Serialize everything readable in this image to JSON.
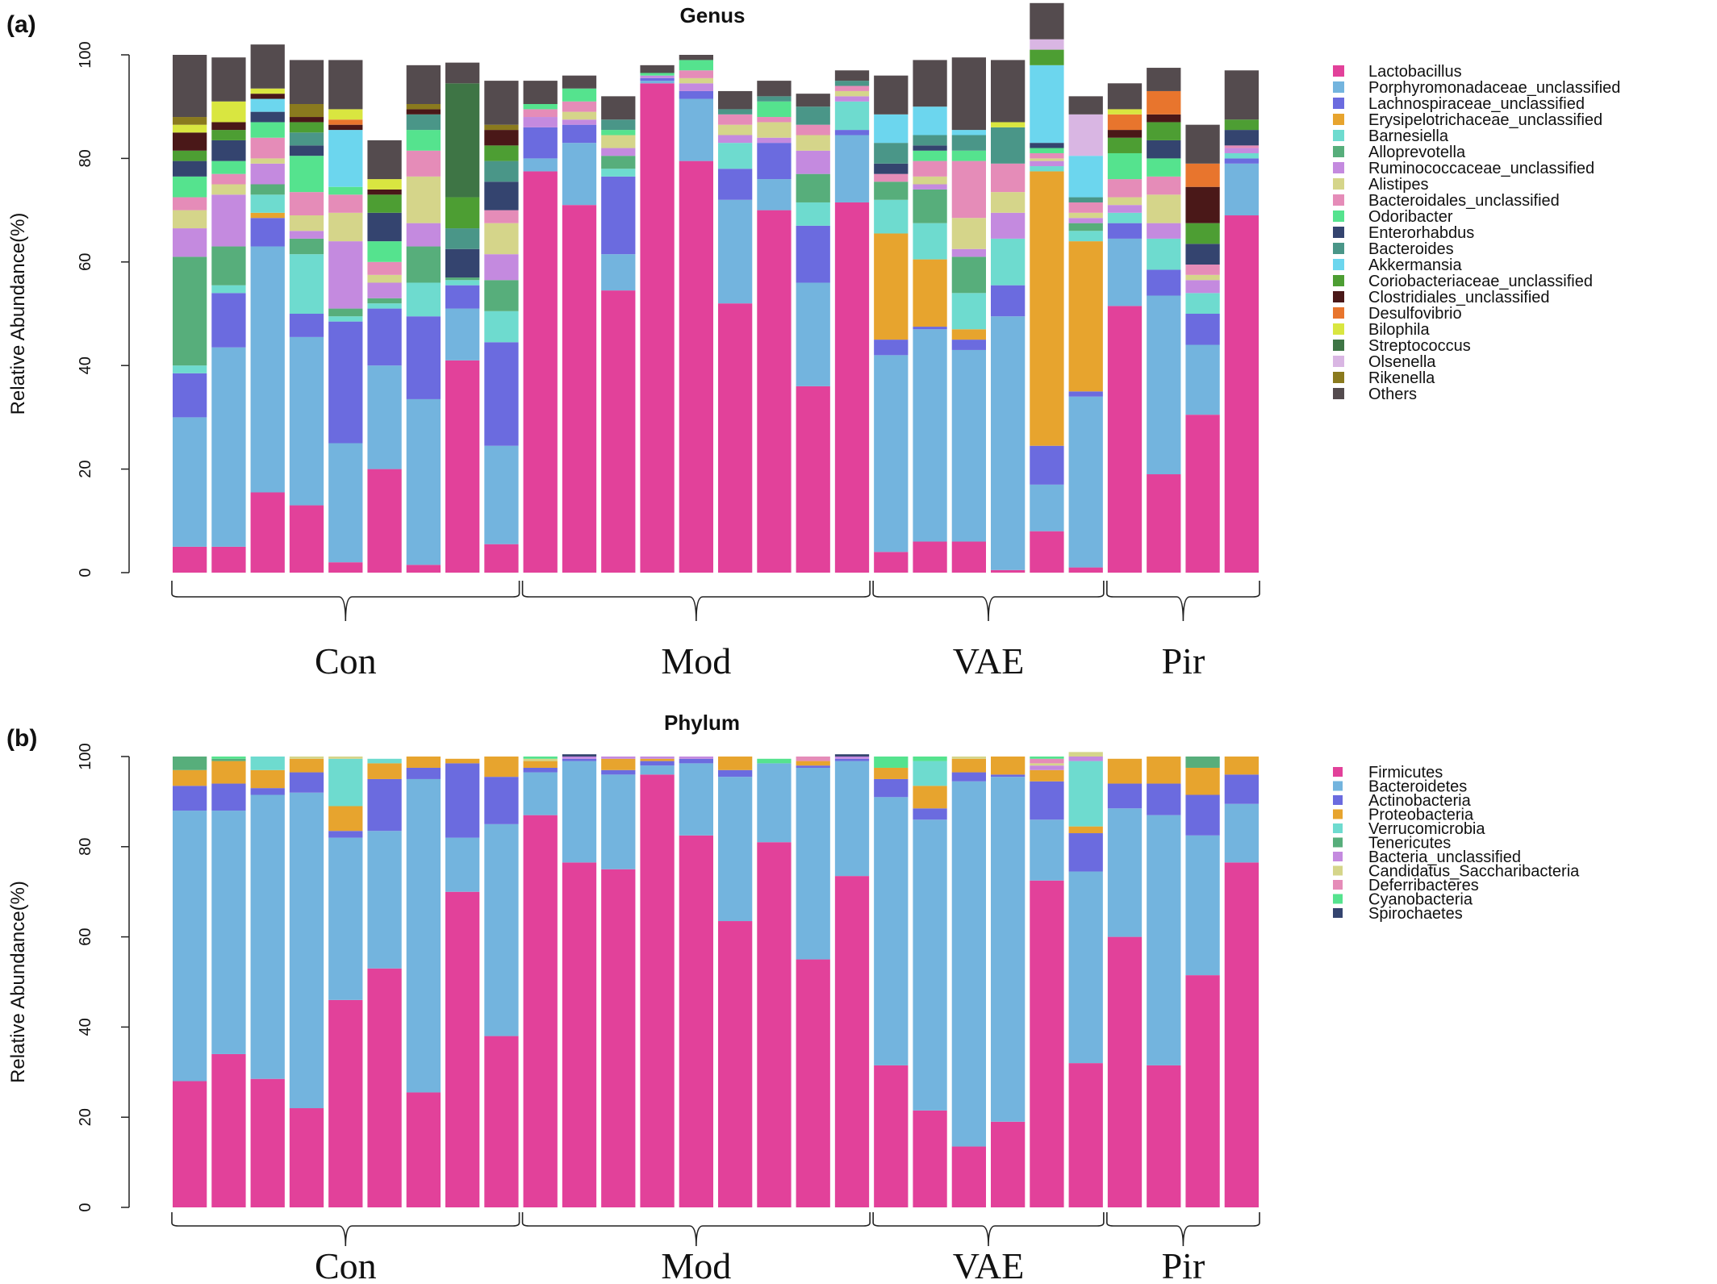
{
  "panels": [
    {
      "label": "(a)"
    },
    {
      "label": "(b)"
    }
  ],
  "chart_data": [
    {
      "type": "bar",
      "stacked": true,
      "title": "Genus",
      "ylabel": "Relative Abundance(%)",
      "ylim": [
        0,
        100
      ],
      "yticks": [
        "0",
        "20",
        "40",
        "60",
        "80",
        "100"
      ],
      "legend_position": "right",
      "groups": [
        {
          "name": "Con",
          "count": 9
        },
        {
          "name": "Mod",
          "count": 9
        },
        {
          "name": "VAE",
          "count": 6
        },
        {
          "name": "Pir",
          "count": 4
        }
      ],
      "series": [
        {
          "name": "Lactobacillus",
          "color": "#E2419A",
          "values": [
            5,
            5,
            15.5,
            13,
            2,
            20,
            1.5,
            41,
            5.5,
            77.5,
            71,
            54.5,
            94.5,
            79.5,
            52,
            70,
            36,
            71.5,
            4,
            6,
            6,
            0.5,
            8,
            1,
            51.5,
            19,
            30.5,
            69
          ]
        },
        {
          "name": "Porphyromonadaceae_unclassified",
          "color": "#73B4DE",
          "values": [
            25,
            38.5,
            47.5,
            32.5,
            23,
            20,
            32,
            10,
            19,
            2.5,
            12,
            7,
            0.5,
            12,
            20,
            6,
            20,
            13,
            38,
            41,
            37,
            49,
            9,
            33,
            13,
            34.5,
            13.5,
            10
          ]
        },
        {
          "name": "Lachnospiraceae_unclassified",
          "color": "#6B6BDF",
          "values": [
            8.5,
            10.5,
            5.5,
            4.5,
            23.5,
            11,
            16,
            4.5,
            20,
            6,
            3.5,
            15,
            0.5,
            1.5,
            6,
            7,
            11,
            1,
            3,
            0.5,
            2,
            6,
            7.5,
            1,
            3,
            5,
            6,
            1
          ]
        },
        {
          "name": "Erysipelotrichaceae_unclassified",
          "color": "#E7A42E",
          "values": [
            0,
            0,
            1,
            0,
            0,
            0,
            0,
            0,
            0,
            0,
            0,
            0,
            0,
            0,
            0,
            0,
            0,
            0,
            20.5,
            13,
            2,
            0,
            53,
            29,
            0,
            0,
            0,
            0
          ]
        },
        {
          "name": "Barnesiella",
          "color": "#6EDBCF",
          "values": [
            1.5,
            1.5,
            3.5,
            11.5,
            1,
            1,
            6.5,
            1,
            6,
            0,
            0,
            1.5,
            0,
            0,
            5,
            0,
            4.5,
            5.5,
            6.5,
            7,
            7,
            9,
            1,
            2,
            2,
            6,
            4,
            1
          ]
        },
        {
          "name": "Alloprevotella",
          "color": "#57AE7B",
          "values": [
            21,
            7.5,
            2,
            3,
            1.5,
            1,
            7,
            0.5,
            6,
            0,
            0,
            2.5,
            0,
            0,
            0,
            0,
            5.5,
            0,
            3.5,
            6.5,
            7,
            0,
            0,
            1.5,
            0,
            0,
            0,
            0
          ]
        },
        {
          "name": "Ruminococcaceae_unclassified",
          "color": "#C48ADF",
          "values": [
            5.5,
            10,
            4,
            1.5,
            13,
            3,
            4.5,
            0,
            5,
            2,
            1,
            1.5,
            0.5,
            1.5,
            1.5,
            1,
            4.5,
            1,
            0,
            1,
            1.5,
            5,
            1,
            1,
            1.5,
            3,
            2.5,
            1
          ]
        },
        {
          "name": "Alistipes",
          "color": "#D5D58A",
          "values": [
            3.5,
            2,
            1,
            3,
            5.5,
            1.5,
            9,
            0,
            6,
            0,
            1.5,
            2.5,
            0,
            1,
            2,
            3,
            3,
            1,
            0,
            1.5,
            6,
            4,
            0.5,
            1,
            1.5,
            5.5,
            1,
            0
          ]
        },
        {
          "name": "Bacteroidales_unclassified",
          "color": "#E58CB8",
          "values": [
            2.5,
            2,
            4,
            4.5,
            3.5,
            2.5,
            5,
            0,
            2.5,
            1.5,
            2,
            0,
            0,
            1.5,
            2,
            1,
            2,
            1,
            1.5,
            3,
            11,
            5.5,
            1,
            2,
            3.5,
            3.5,
            2,
            0.5
          ]
        },
        {
          "name": "Odoribacter",
          "color": "#55E38E",
          "values": [
            4,
            2.5,
            3,
            7,
            1.5,
            4,
            4,
            0,
            0,
            1,
            2.5,
            1,
            0.5,
            2,
            0,
            3,
            0,
            0,
            0,
            2,
            2,
            0,
            1,
            0,
            5,
            3.5,
            0,
            0
          ]
        },
        {
          "name": "Enterorhabdus",
          "color": "#34446F",
          "values": [
            3,
            4,
            2,
            2,
            0,
            5.5,
            0,
            5.5,
            5.5,
            0,
            0,
            0,
            0,
            0,
            0,
            0,
            0,
            0,
            2,
            1,
            0,
            0,
            1,
            0,
            0,
            3.5,
            4,
            3
          ]
        },
        {
          "name": "Bacteroides",
          "color": "#4A9688",
          "values": [
            0,
            0,
            0,
            2.5,
            0,
            0,
            3,
            4,
            4,
            0,
            0,
            2,
            0,
            0,
            1,
            1,
            3.5,
            1,
            4,
            2,
            3,
            7,
            0,
            1,
            0,
            0,
            0,
            0
          ]
        },
        {
          "name": "Akkermansia",
          "color": "#6CD6EE",
          "values": [
            0,
            0,
            2.5,
            0,
            11,
            0,
            0,
            0,
            0,
            0,
            0,
            0,
            0,
            0,
            0,
            0,
            0,
            0,
            5.5,
            5.5,
            1,
            0,
            15,
            8,
            0,
            0,
            0,
            0
          ]
        },
        {
          "name": "Coriobacteriaceae_unclassified",
          "color": "#4D9E33",
          "values": [
            2,
            2,
            0,
            2,
            0,
            3.5,
            0,
            6,
            3,
            0,
            0,
            0,
            0,
            0,
            0,
            0,
            0,
            0,
            0,
            0,
            0,
            0,
            3,
            0,
            3,
            3.5,
            4,
            2
          ]
        },
        {
          "name": "Clostridiales_unclassified",
          "color": "#4A1818",
          "values": [
            3.5,
            1.5,
            1,
            1,
            1,
            1,
            1,
            0,
            3,
            0,
            0,
            0,
            0,
            0,
            0,
            0,
            0,
            0,
            0,
            0,
            0,
            0,
            0,
            0,
            1.5,
            1.5,
            7,
            0
          ]
        },
        {
          "name": "Desulfovibrio",
          "color": "#E8752D",
          "values": [
            0,
            0,
            0,
            0,
            1,
            0,
            0,
            0,
            0,
            0,
            0,
            0,
            0,
            0,
            0,
            0,
            0,
            0,
            0,
            0,
            0,
            0,
            0,
            0,
            3,
            4.5,
            4.5,
            0
          ]
        },
        {
          "name": "Bilophila",
          "color": "#D9E640",
          "values": [
            1.5,
            4,
            1,
            0,
            2,
            2,
            0,
            0,
            0,
            0,
            0,
            0,
            0,
            0,
            0,
            0,
            0,
            0,
            0,
            0,
            0,
            1,
            0,
            0,
            1,
            0,
            0,
            0
          ]
        },
        {
          "name": "Streptococcus",
          "color": "#3E7545",
          "values": [
            0,
            0,
            0,
            0,
            0,
            0,
            0,
            22,
            0,
            0,
            0,
            0,
            0,
            0,
            0,
            0,
            0,
            0,
            0,
            0,
            0,
            0,
            0,
            0,
            0,
            0,
            0,
            0
          ]
        },
        {
          "name": "Olsenella",
          "color": "#D9B6E3",
          "values": [
            0,
            0,
            0,
            0,
            0,
            0,
            0,
            0,
            0,
            0,
            0,
            0,
            0,
            0,
            0,
            0,
            0,
            0,
            0,
            0,
            0,
            0,
            2,
            8,
            0,
            0,
            0,
            0
          ]
        },
        {
          "name": "Rikenella",
          "color": "#8A7A1E",
          "values": [
            1.5,
            0,
            0,
            2.5,
            0,
            0,
            1,
            0,
            1,
            0,
            0,
            0,
            0,
            0,
            0,
            0,
            0,
            0,
            0,
            0,
            0,
            0,
            0,
            0,
            0,
            0,
            0,
            0
          ]
        },
        {
          "name": "Others",
          "color": "#544B4E",
          "values": [
            12,
            8.5,
            8.5,
            8.5,
            9.5,
            7.5,
            7.5,
            4,
            8.5,
            4.5,
            2.5,
            4.5,
            1.5,
            1,
            3.5,
            3,
            2.5,
            2,
            7.5,
            9,
            14,
            12,
            7,
            3.5,
            5,
            4.5,
            7.5,
            9.5
          ]
        }
      ]
    },
    {
      "type": "bar",
      "stacked": true,
      "title": "Phylum",
      "ylabel": "Relative Abundance(%)",
      "ylim": [
        0,
        100
      ],
      "yticks": [
        "0",
        "20",
        "40",
        "60",
        "80",
        "100"
      ],
      "legend_position": "right",
      "groups": [
        {
          "name": "Con",
          "count": 9
        },
        {
          "name": "Mod",
          "count": 9
        },
        {
          "name": "VAE",
          "count": 6
        },
        {
          "name": "Pir",
          "count": 4
        }
      ],
      "series": [
        {
          "name": "Firmicutes",
          "color": "#E2419A",
          "values": [
            28,
            34,
            28.5,
            22,
            46,
            53,
            25.5,
            70,
            38,
            87,
            76.5,
            75,
            96,
            82.5,
            63.5,
            81,
            55,
            73.5,
            31.5,
            21.5,
            13.5,
            19,
            72.5,
            32,
            60,
            31.5,
            51.5,
            76.5
          ]
        },
        {
          "name": "Bacteroidetes",
          "color": "#73B4DE",
          "values": [
            60,
            54,
            63,
            70,
            36,
            30.5,
            69.5,
            12,
            47,
            9.5,
            22.5,
            21,
            2,
            16,
            32,
            17.5,
            42.5,
            25.5,
            59.5,
            64.5,
            81,
            76.5,
            13.5,
            42.5,
            28.5,
            55.5,
            31,
            13
          ]
        },
        {
          "name": "Actinobacteria",
          "color": "#6B6BDF",
          "values": [
            5.5,
            6,
            1.5,
            4.5,
            1.5,
            11.5,
            2.5,
            16.5,
            10.5,
            1,
            0.5,
            1,
            1,
            1,
            1.5,
            0,
            0.5,
            0.5,
            4,
            2.5,
            2,
            0.5,
            8.5,
            8.5,
            5.5,
            7,
            9,
            6.5
          ]
        },
        {
          "name": "Proteobacteria",
          "color": "#E7A42E",
          "values": [
            3.5,
            5,
            4,
            3,
            5.5,
            3.5,
            2.5,
            1,
            4.5,
            1.5,
            0,
            2.5,
            0.5,
            0,
            3,
            0,
            1,
            0,
            2.5,
            5,
            3,
            4,
            2.5,
            1.5,
            5.5,
            6,
            6,
            4
          ]
        },
        {
          "name": "Verrucomicrobia",
          "color": "#6EDBCF",
          "values": [
            0,
            0,
            3,
            0,
            10.5,
            1,
            0,
            0,
            0,
            0,
            0,
            0,
            0,
            0,
            0,
            0,
            0,
            0,
            0,
            5.5,
            0,
            0,
            0,
            14.5,
            0,
            0,
            0,
            0
          ]
        },
        {
          "name": "Tenericutes",
          "color": "#57AE7B",
          "values": [
            3,
            0.5,
            0,
            0,
            0,
            0,
            0,
            0,
            0,
            0,
            0,
            0,
            0,
            0,
            0,
            0,
            0,
            0,
            0,
            0,
            0,
            0,
            0,
            0,
            0,
            0,
            2.5,
            0
          ]
        },
        {
          "name": "Bacteria_unclassified",
          "color": "#C48ADF",
          "values": [
            0,
            0,
            0,
            0,
            0,
            0,
            0,
            0,
            0,
            0,
            0.5,
            0.5,
            0.5,
            0.5,
            0,
            0,
            0,
            0.5,
            0,
            0,
            0,
            0,
            1,
            1,
            0,
            0,
            0,
            0
          ]
        },
        {
          "name": "Candidatus_Saccharibacteria",
          "color": "#D5D58A",
          "values": [
            0,
            0,
            0,
            0.5,
            0.5,
            0,
            0,
            0,
            0,
            0.5,
            0,
            0,
            0,
            0,
            0,
            0,
            0,
            0,
            0,
            0,
            0.5,
            0,
            0.5,
            1,
            0,
            0,
            0,
            0
          ]
        },
        {
          "name": "Deferribacteres",
          "color": "#E58CB8",
          "values": [
            0,
            0,
            0,
            0,
            0,
            0,
            0,
            0,
            0,
            0,
            0,
            0,
            0,
            0,
            0,
            0,
            1,
            0,
            0,
            0,
            0,
            0,
            1,
            0,
            0,
            0,
            0,
            0
          ]
        },
        {
          "name": "Cyanobacteria",
          "color": "#55E38E",
          "values": [
            0,
            0.5,
            0,
            0,
            0,
            0,
            0,
            0,
            0,
            0.5,
            0,
            0,
            0,
            0,
            0,
            1,
            0,
            0,
            2.5,
            1,
            0,
            0,
            0.5,
            0,
            0,
            0,
            0,
            0
          ]
        },
        {
          "name": "Spirochaetes",
          "color": "#34446F",
          "values": [
            0,
            0,
            0,
            0,
            0,
            0,
            0,
            0,
            0,
            0,
            0.5,
            0,
            0,
            0,
            0,
            0,
            0,
            0.5,
            0,
            0,
            0,
            0,
            0,
            0,
            0,
            0,
            0,
            0
          ]
        }
      ]
    }
  ]
}
